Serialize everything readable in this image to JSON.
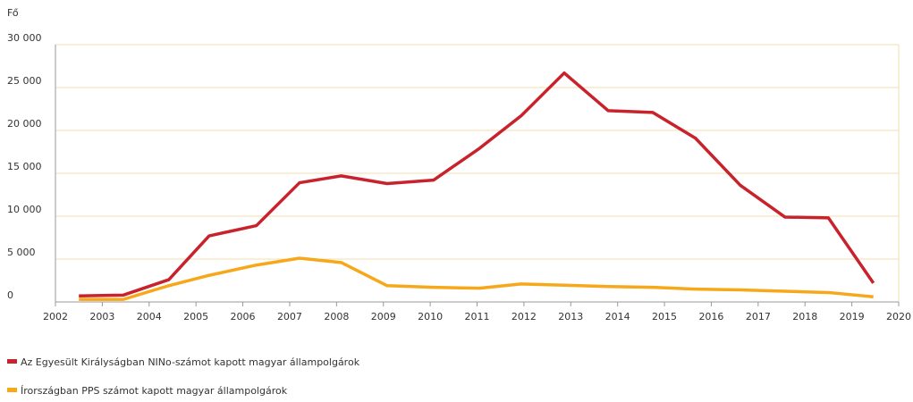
{
  "chart_data": {
    "type": "line",
    "y_label": "Fő",
    "xlim": [
      2002,
      2020
    ],
    "xticks": [
      2002,
      2003,
      2004,
      2005,
      2006,
      2007,
      2008,
      2009,
      2010,
      2011,
      2012,
      2013,
      2014,
      2015,
      2016,
      2017,
      2018,
      2019,
      2020
    ],
    "ylim": [
      0,
      30000
    ],
    "yticks": [
      0,
      {
        "value": 5000,
        "label": "5 000"
      },
      {
        "value": 10000,
        "label": "10 000"
      },
      {
        "value": 15000,
        "label": "15 000"
      },
      {
        "value": 20000,
        "label": "20 000"
      },
      {
        "value": 25000,
        "label": "25 000"
      },
      {
        "value": 30000,
        "label": "30 000"
      }
    ],
    "grid": true,
    "legend": "bottom-left",
    "x": [
      2002.5,
      2003.45,
      2004.42,
      2005.28,
      2006.29,
      2007.21,
      2008.1,
      2009.08,
      2010.07,
      2011.05,
      2011.94,
      2012.86,
      2013.8,
      2014.75,
      2015.66,
      2016.62,
      2017.57,
      2018.5,
      2019.46
    ],
    "series": [
      {
        "name": "Az Egyesült Királyságban NINo-számot kapott magyar állampolgárok",
        "color": "#c8232c",
        "values": [
          700,
          800,
          2600,
          7700,
          8900,
          13900,
          14700,
          13800,
          14200,
          17900,
          21700,
          26700,
          22300,
          22100,
          19100,
          13600,
          9900,
          9800,
          2200
        ]
      },
      {
        "name": "Írországban PPS számot kapott magyar állampolgárok",
        "color": "#f6a81a",
        "values": [
          300,
          300,
          1900,
          3100,
          4300,
          5100,
          4600,
          1900,
          1700,
          1600,
          2100,
          1950,
          1800,
          1700,
          1500,
          1400,
          1250,
          1100,
          600
        ]
      }
    ]
  }
}
